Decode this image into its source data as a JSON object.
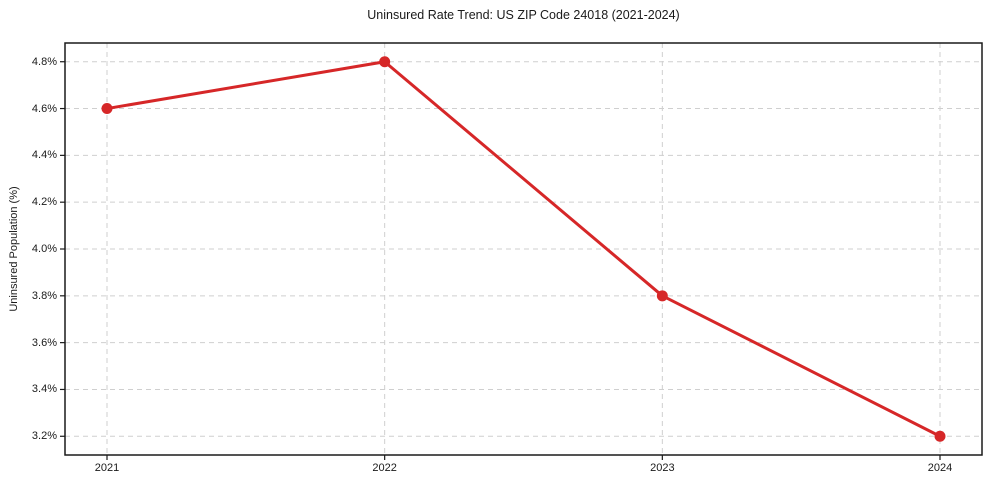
{
  "chart_data": {
    "type": "line",
    "title": "Uninsured Rate Trend: US ZIP Code 24018 (2021-2024)",
    "xlabel": "",
    "ylabel": "Uninsured Population (%)",
    "categories": [
      "2021",
      "2022",
      "2023",
      "2024"
    ],
    "series": [
      {
        "name": "Uninsured Rate",
        "values": [
          4.6,
          4.8,
          3.8,
          3.2
        ]
      }
    ],
    "yticks": [
      3.2,
      3.4,
      3.6,
      3.8,
      4.0,
      4.2,
      4.4,
      4.6,
      4.8
    ],
    "ytick_labels": [
      "3.2%",
      "3.4%",
      "3.6%",
      "3.8%",
      "4.0%",
      "4.2%",
      "4.4%",
      "4.6%",
      "4.8%"
    ],
    "ylim": [
      3.12,
      4.88
    ],
    "grid": true,
    "grid_style": "dashed",
    "legend": "none",
    "line_color": "#d62728",
    "marker": "circle",
    "grid_color": "#cfcfcf",
    "spine_color": "#1a1a1a",
    "background_color": "#ffffff"
  }
}
